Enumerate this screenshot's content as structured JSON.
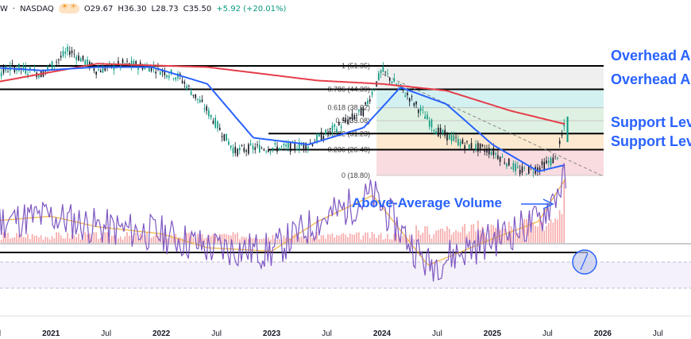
{
  "header": {
    "symbol": "W",
    "exchange": "NASDAQ",
    "open": "O29.67",
    "high": "H36.30",
    "low": "L28.73",
    "close": "C35.50",
    "change": "+5.92 (+20.01%)"
  },
  "annotations": {
    "overhead_1": "Overhead A",
    "overhead_2": "Overhead A",
    "support_1": "Support Lev",
    "support_2": "Support Lev",
    "volume": "Above-Average Volume"
  },
  "fib_labels": [
    "1 (51.35)",
    "0.786 (44.39)",
    "0.618 (38.92)",
    "0.5 (35.08)",
    "0.382 (31.23)",
    "0.236 (26.48)",
    "0 (18.80)"
  ],
  "colors": {
    "price": "#131722",
    "ma50": "#2962ff",
    "ma200": "#e53e4a",
    "annotation": "#2962ff",
    "rsi": "#7e57c2",
    "rsi_ma": "#f0b23a",
    "volume": "#f7a8a8",
    "fib_red": "#f8d6d9",
    "fib_orange": "#fde5c7",
    "fib_green": "#d9efdd",
    "fib_teal": "#cdeeee",
    "fib_gray": "#ececec"
  },
  "chart_data": {
    "type": "line",
    "title": "",
    "xlabel": "",
    "ylabel": "",
    "x_ticks": [
      "Jul",
      "2021",
      "Jul",
      "2022",
      "Jul",
      "2023",
      "Jul",
      "2024",
      "Jul",
      "2025",
      "Jul",
      "2026",
      "Jul"
    ],
    "fib_levels": [
      {
        "ratio": 1,
        "price": 51.35
      },
      {
        "ratio": 0.786,
        "price": 44.39
      },
      {
        "ratio": 0.618,
        "price": 38.92
      },
      {
        "ratio": 0.5,
        "price": 35.08
      },
      {
        "ratio": 0.382,
        "price": 31.23
      },
      {
        "ratio": 0.236,
        "price": 26.48
      },
      {
        "ratio": 0,
        "price": 18.8
      }
    ],
    "horizontal_levels": [
      {
        "name": "Overhead A",
        "price": 51.35
      },
      {
        "name": "Overhead A",
        "price": 44.39
      },
      {
        "name": "Support Lev",
        "price": 31.23
      },
      {
        "name": "Support Lev",
        "price": 26.48
      }
    ],
    "series": [
      {
        "name": "price",
        "x": [
          "2020-06",
          "2020-09",
          "2020-12",
          "2021-03",
          "2021-06",
          "2021-09",
          "2021-12",
          "2022-03",
          "2022-06",
          "2022-09",
          "2022-11",
          "2023-02",
          "2023-05",
          "2023-08",
          "2023-11",
          "2024-01",
          "2024-04",
          "2024-07",
          "2024-10",
          "2025-01",
          "2025-04",
          "2025-06",
          "2025-08",
          "2025-09"
        ],
        "values": [
          48,
          51,
          49,
          56,
          50,
          52,
          51,
          48,
          38,
          26,
          27,
          27,
          28,
          33,
          38,
          50,
          42,
          32,
          28,
          26,
          20,
          21,
          24,
          35.5
        ]
      },
      {
        "name": "ma50",
        "x": [
          "2020-06",
          "2020-12",
          "2021-06",
          "2021-12",
          "2022-06",
          "2022-11",
          "2023-05",
          "2023-11",
          "2024-03",
          "2024-08",
          "2025-01",
          "2025-06",
          "2025-09"
        ],
        "values": [
          51,
          50,
          51,
          51,
          46,
          30,
          28,
          33,
          45,
          40,
          28,
          20,
          22
        ]
      },
      {
        "name": "ma200",
        "x": [
          "2020-06",
          "2021-06",
          "2022-06",
          "2023-06",
          "2024-01",
          "2024-08",
          "2025-03",
          "2025-09"
        ],
        "values": [
          46,
          52,
          51,
          47,
          46,
          44,
          38,
          34
        ]
      },
      {
        "name": "rsi",
        "x": [
          "2020-06",
          "2021-01",
          "2021-06",
          "2022-01",
          "2022-06",
          "2023-01",
          "2023-06",
          "2023-12",
          "2024-06",
          "2025-01",
          "2025-06",
          "2025-09"
        ],
        "values": [
          55,
          58,
          52,
          48,
          40,
          38,
          55,
          70,
          30,
          45,
          55,
          80
        ]
      }
    ]
  }
}
